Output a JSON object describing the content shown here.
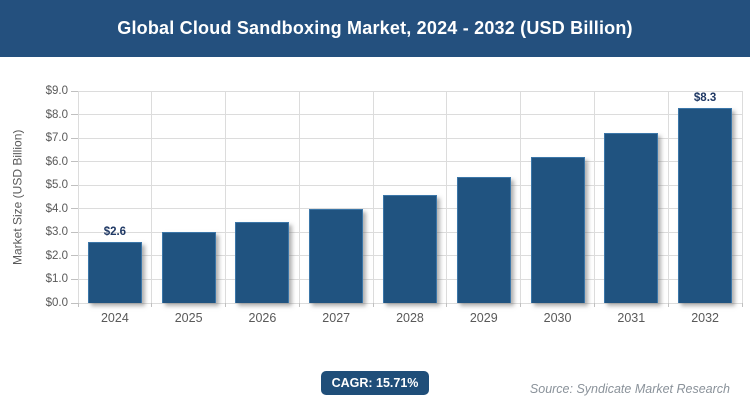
{
  "header": {
    "title": "Global Cloud Sandboxing Market, 2024 - 2032 (USD Billion)"
  },
  "footer": {
    "cagr_label": "CAGR: 15.71%",
    "source": "Source: Syndicate Market Research"
  },
  "colors": {
    "header_bg": "#24507E",
    "bar_fill": "#205380",
    "bar_border": "#3B76A8",
    "label_navy": "#1F3864",
    "axis_text": "#595959",
    "grid": "#DCDCDC",
    "tick": "#C0C0C0",
    "badge_bg": "#1F4E79",
    "source_text": "#8A929A"
  },
  "chart_data": {
    "type": "bar",
    "title": "Global Cloud Sandboxing Market, 2024 - 2032 (USD Billion)",
    "categories": [
      "2024",
      "2025",
      "2026",
      "2027",
      "2028",
      "2029",
      "2030",
      "2031",
      "2032"
    ],
    "values": [
      2.6,
      3.0,
      3.45,
      4.0,
      4.6,
      5.35,
      6.2,
      7.2,
      8.3
    ],
    "point_labels": {
      "2024": "$2.6",
      "2032": "$8.3"
    },
    "xlabel": "",
    "ylabel": "Market Size (USD Billion)",
    "ylim": [
      0,
      9
    ],
    "yticks": [
      "$0.0",
      "$1.0",
      "$2.0",
      "$3.0",
      "$4.0",
      "$5.0",
      "$6.0",
      "$7.0",
      "$8.0",
      "$9.0"
    ],
    "grid": "both",
    "legend": "none"
  }
}
